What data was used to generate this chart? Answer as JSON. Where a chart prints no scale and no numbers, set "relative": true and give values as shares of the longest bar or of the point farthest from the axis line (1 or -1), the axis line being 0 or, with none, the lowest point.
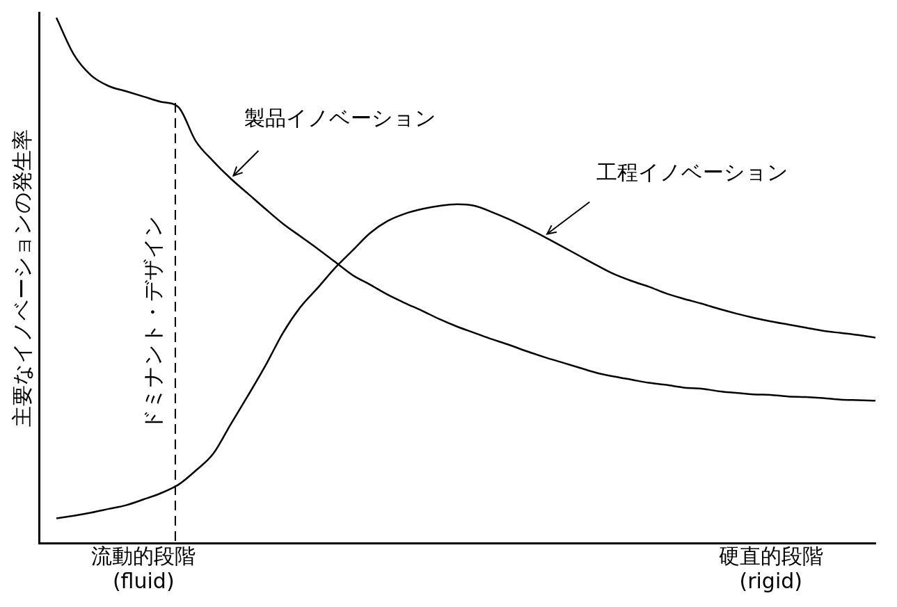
{
  "chart_data": {
    "type": "line",
    "relative": true,
    "ylabel": "主要なイノベーションの発生率",
    "categories": [
      null,
      null,
      null,
      null,
      null,
      null,
      "流動的段階\n(fluid)",
      null,
      null,
      null,
      null,
      null,
      null,
      null,
      null,
      null,
      null,
      null,
      null,
      null,
      null,
      null,
      null,
      null,
      null,
      null,
      null,
      null,
      null,
      null,
      null,
      null,
      null,
      null,
      null,
      null,
      null,
      null,
      null,
      null,
      null,
      null,
      "硬直的段階\n(rigid)",
      null,
      null,
      null,
      null,
      null,
      null
    ],
    "grid": false,
    "legend": false,
    "marker": "none",
    "line_style": "solid",
    "series": [
      {
        "name": "製品イノベーション",
        "color": "#000000",
        "values": [
          null,
          1.0,
          0.93,
          0.89,
          0.87,
          0.86,
          0.85,
          0.84,
          0.83,
          0.765,
          0.727,
          0.694,
          0.665,
          0.636,
          0.608,
          0.584,
          0.56,
          0.535,
          0.51,
          0.492,
          0.473,
          0.457,
          0.442,
          0.426,
          0.412,
          0.4,
          0.388,
          0.377,
          0.365,
          0.354,
          0.344,
          0.334,
          0.324,
          0.317,
          0.311,
          0.305,
          0.301,
          0.296,
          0.294,
          0.289,
          0.286,
          0.283,
          0.282,
          0.279,
          0.278,
          0.276,
          0.273,
          0.272,
          0.271
        ]
      },
      {
        "name": "工程イノベーション",
        "color": "#000000",
        "values": [
          null,
          0.047,
          0.052,
          0.058,
          0.065,
          0.072,
          0.083,
          0.095,
          0.111,
          0.138,
          0.17,
          0.226,
          0.281,
          0.338,
          0.4,
          0.449,
          0.486,
          0.524,
          0.557,
          0.59,
          0.613,
          0.627,
          0.636,
          0.642,
          0.645,
          0.642,
          0.63,
          0.616,
          0.6,
          0.583,
          0.565,
          0.547,
          0.529,
          0.512,
          0.499,
          0.488,
          0.475,
          0.465,
          0.456,
          0.446,
          0.437,
          0.429,
          0.422,
          0.416,
          0.41,
          0.404,
          0.4,
          0.396,
          0.391
        ]
      }
    ],
    "annotations": [
      "ドミナント・デザイン"
    ]
  }
}
